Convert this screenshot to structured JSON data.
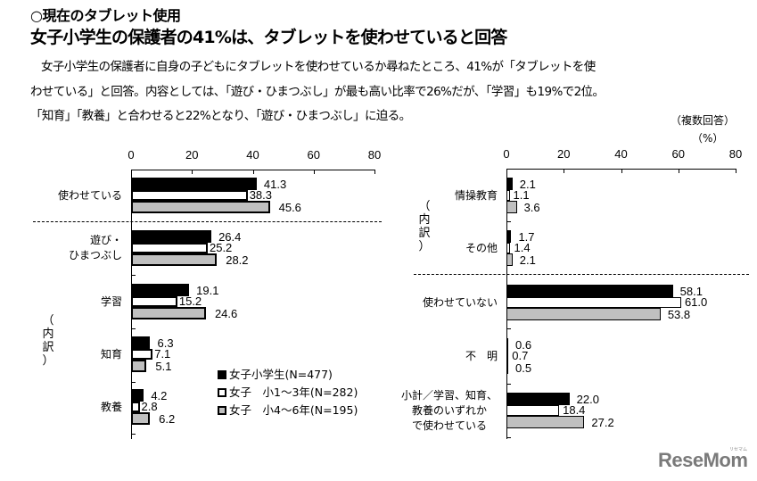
{
  "header": {
    "section_title": "○現在のタブレット使用",
    "headline": "女子小学生の保護者の41%は、タブレットを使わせていると回答",
    "paragraph": [
      "女子小学生の保護者に自身の子どもにタブレットを使わせているか尋ねたところ、41%が「タブレットを使",
      "わせている」と回答。内容としては、「遊び・ひまつぶし」が最も高い比率で26%だが、「学習」も19%で2位。",
      "「知育」「教養」と合わせると22%となり、「遊び・ひまつぶし」に迫る。"
    ]
  },
  "notes": {
    "multiple_answers": "（複数回答）",
    "unit": "（%）"
  },
  "vertical_label": [
    "（",
    "内",
    "訳",
    "）"
  ],
  "legend": [
    {
      "label": "女子小学生(N=477)",
      "style": "black"
    },
    {
      "label": "女子　小1～3年(N=282)",
      "style": "white"
    },
    {
      "label": "女子　小4～6年(N=195)",
      "style": "gray"
    }
  ],
  "colors": {
    "series1": "#000000",
    "series2": "#ffffff",
    "series3": "#c0c0c0"
  },
  "logo": {
    "text": "ReseMom",
    "sub": "リセマム"
  },
  "chart_data": [
    {
      "type": "bar",
      "orientation": "horizontal",
      "title": "",
      "xlabel": "",
      "ylabel": "",
      "xlim": [
        0,
        80
      ],
      "ticks": [
        "0",
        "20",
        "40",
        "60",
        "80"
      ],
      "grid": false,
      "legend_position": "inside-bottom-right",
      "categories": [
        "使わせている",
        "遊び・ひまつぶし",
        "学習",
        "知育",
        "教養"
      ],
      "series": [
        {
          "name": "女子小学生(N=477)",
          "values": [
            41.3,
            26.4,
            19.1,
            6.3,
            4.2
          ]
        },
        {
          "name": "女子　小1～3年(N=282)",
          "values": [
            38.3,
            25.2,
            15.2,
            7.1,
            2.8
          ]
        },
        {
          "name": "女子　小4～6年(N=195)",
          "values": [
            45.6,
            28.2,
            24.6,
            5.1,
            6.2
          ]
        }
      ],
      "annotations": [
        "（内訳）"
      ]
    },
    {
      "type": "bar",
      "orientation": "horizontal",
      "title": "",
      "xlabel": "（%）",
      "ylabel": "",
      "xlim": [
        0,
        80
      ],
      "ticks": [
        "0",
        "20",
        "40",
        "60",
        "80"
      ],
      "grid": false,
      "categories": [
        "情操教育",
        "その他",
        "使わせていない",
        "不　明",
        "小計／学習、知育、教養のいずれかで使わせている"
      ],
      "series": [
        {
          "name": "女子小学生(N=477)",
          "values": [
            2.1,
            1.7,
            58.1,
            0.6,
            22.0
          ]
        },
        {
          "name": "女子　小1～3年(N=282)",
          "values": [
            1.1,
            1.4,
            61.0,
            0.7,
            18.4
          ]
        },
        {
          "name": "女子　小4～6年(N=195)",
          "values": [
            3.6,
            2.1,
            53.8,
            0.5,
            27.2
          ]
        }
      ],
      "annotations": [
        "（複数回答）",
        "（内訳）"
      ]
    }
  ],
  "labels": {
    "left": [
      "使わせている",
      [
        "遊び・",
        "ひまつぶし"
      ],
      "学習",
      "知育",
      "教養"
    ],
    "right": [
      "情操教育",
      "その他",
      "使わせていない",
      "不　明",
      [
        "小計／学習、知育、",
        "教養のいずれか",
        "で使わせている"
      ]
    ]
  },
  "value_text": {
    "left": [
      [
        "41.3",
        "38.3",
        "45.6"
      ],
      [
        "26.4",
        "25.2",
        "28.2"
      ],
      [
        "19.1",
        "15.2",
        "24.6"
      ],
      [
        "6.3",
        "7.1",
        "5.1"
      ],
      [
        "4.2",
        "2.8",
        "6.2"
      ]
    ],
    "right": [
      [
        "2.1",
        "1.1",
        "3.6"
      ],
      [
        "1.7",
        "1.4",
        "2.1"
      ],
      [
        "58.1",
        "61.0",
        "53.8"
      ],
      [
        "0.6",
        "0.7",
        "0.5"
      ],
      [
        "22.0",
        "18.4",
        "27.2"
      ]
    ]
  }
}
